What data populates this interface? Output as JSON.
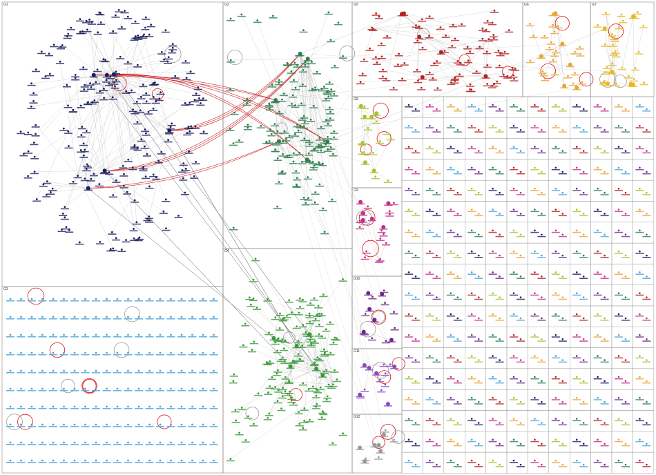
{
  "groups": [
    {
      "label": "G1"
    },
    {
      "label": "G2"
    },
    {
      "label": "G3"
    },
    {
      "label": "G4"
    },
    {
      "label": "G5"
    },
    {
      "label": "G6"
    },
    {
      "label": "G7"
    },
    {
      "label": "G8"
    },
    {
      "label": "G9"
    },
    {
      "label": "G10"
    },
    {
      "label": "G11"
    },
    {
      "label": "G12"
    }
  ]
}
